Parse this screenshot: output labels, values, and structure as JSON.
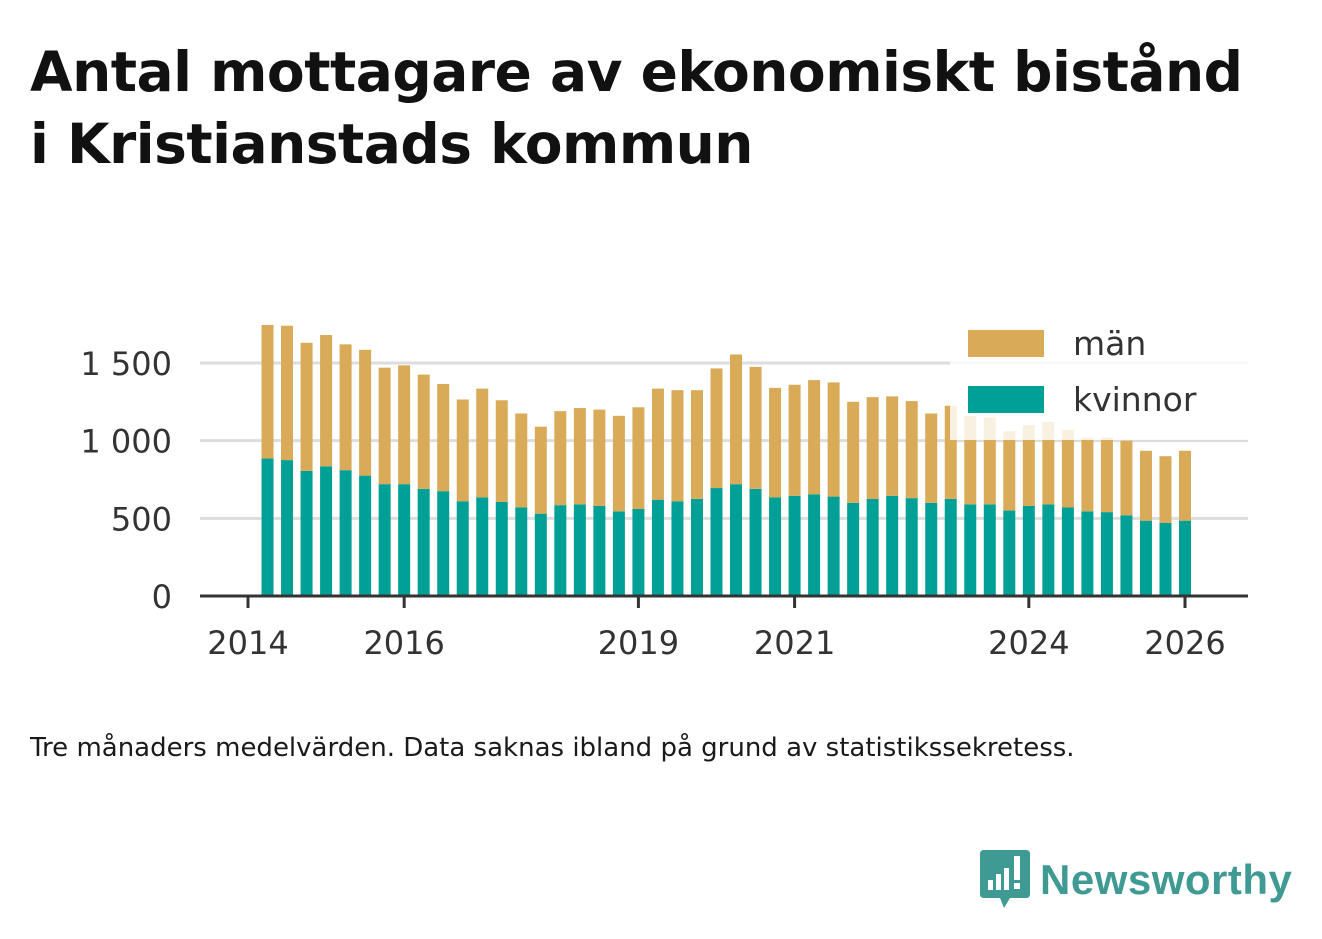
{
  "title": {
    "line1": "Antal mottagare av ekonomiskt bistånd",
    "line2": "i Kristianstads kommun"
  },
  "note": "Tre månaders medelvärden. Data saknas ibland på grund av statistikssekretess.",
  "brand": {
    "name": "Newsworthy",
    "icon": "newsworthy-logo-icon",
    "color": "#3f9a94"
  },
  "colors": {
    "man": "#d9aa57",
    "kvinnor": "#00a096",
    "grid": "#dddddd",
    "axis": "#333333",
    "text": "#333333"
  },
  "chart_data": {
    "type": "bar",
    "stacked": true,
    "legend": [
      "män",
      "kvinnor"
    ],
    "legend_position": "top-right",
    "ylim": [
      0,
      1700
    ],
    "yticks": [
      0,
      500,
      1000,
      1500
    ],
    "ytick_labels": [
      "0",
      "500",
      "1 000",
      "1 500"
    ],
    "xticks": [
      2014,
      2016,
      2019,
      2021,
      2024,
      2026
    ],
    "xtick_labels": [
      "2014",
      "2016",
      "2019",
      "2021",
      "2024",
      "2026"
    ],
    "x": [
      2014.25,
      2014.5,
      2014.75,
      2015.0,
      2015.25,
      2015.5,
      2015.75,
      2016.0,
      2016.25,
      2016.5,
      2016.75,
      2017.0,
      2017.25,
      2017.5,
      2017.75,
      2018.0,
      2018.25,
      2018.5,
      2018.75,
      2019.0,
      2019.25,
      2019.5,
      2019.75,
      2020.0,
      2020.25,
      2020.5,
      2020.75,
      2021.0,
      2021.25,
      2021.5,
      2021.75,
      2022.0,
      2022.25,
      2022.5,
      2022.75,
      2023.0,
      2023.25,
      2023.5,
      2023.75,
      2024.0,
      2024.25,
      2024.5,
      2024.75,
      2025.0,
      2025.25,
      2025.5,
      2025.75,
      2026.0
    ],
    "series": [
      {
        "name": "kvinnor",
        "values": [
          885,
          875,
          805,
          835,
          810,
          775,
          720,
          720,
          690,
          675,
          610,
          635,
          605,
          570,
          530,
          585,
          590,
          580,
          545,
          560,
          620,
          610,
          625,
          695,
          720,
          690,
          635,
          645,
          655,
          640,
          600,
          625,
          645,
          630,
          600,
          625,
          590,
          590,
          550,
          580,
          590,
          570,
          545,
          540,
          520,
          485,
          470,
          485
        ]
      },
      {
        "name": "män",
        "values": [
          860,
          865,
          825,
          845,
          810,
          810,
          750,
          765,
          735,
          690,
          655,
          700,
          655,
          605,
          560,
          605,
          620,
          620,
          615,
          655,
          715,
          715,
          700,
          770,
          835,
          785,
          705,
          715,
          735,
          735,
          650,
          655,
          640,
          625,
          575,
          600,
          570,
          560,
          510,
          520,
          530,
          500,
          475,
          480,
          480,
          450,
          430,
          450
        ]
      }
    ]
  }
}
